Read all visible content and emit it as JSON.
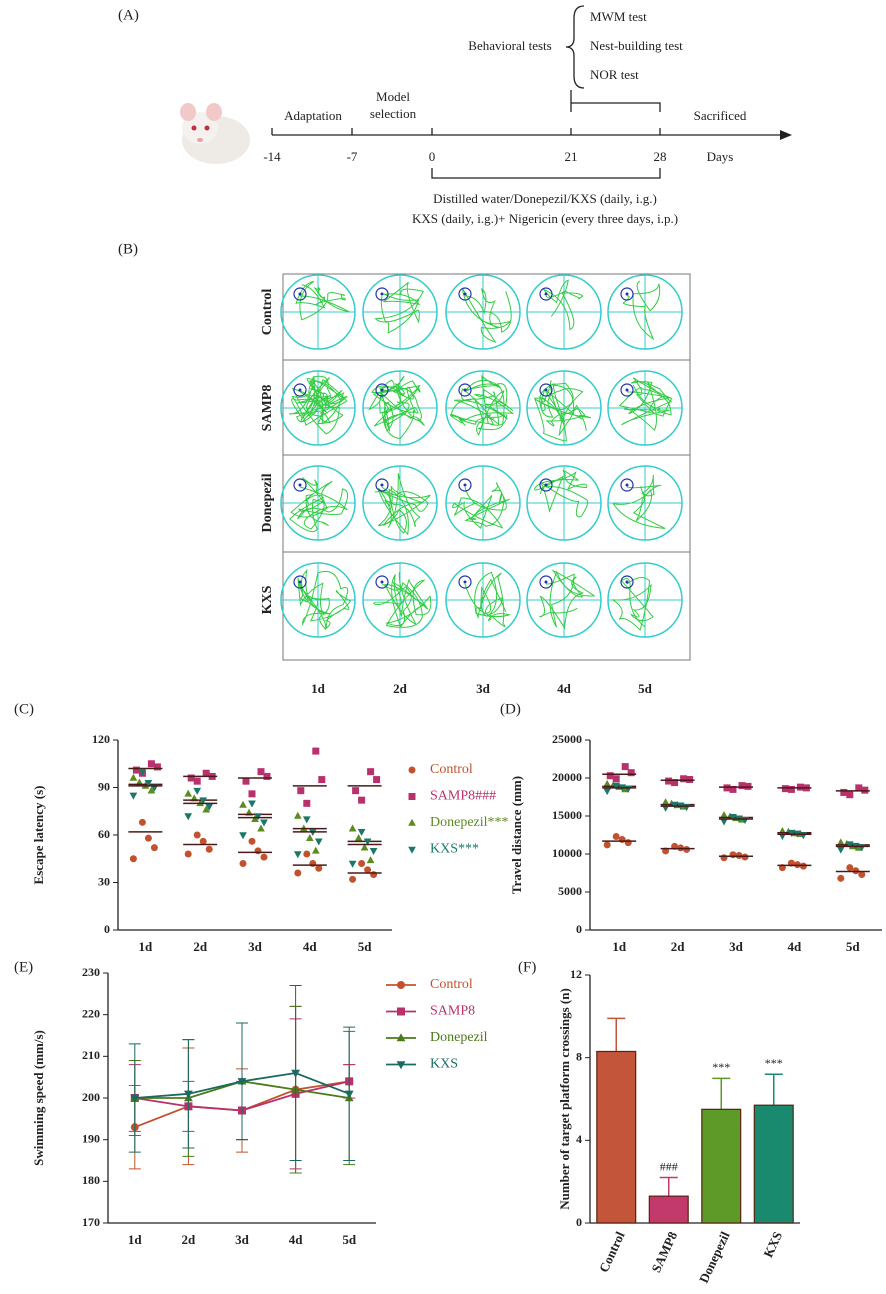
{
  "panel_a": {
    "label": "(A)",
    "tests": [
      "MWM test",
      "Nest-building test",
      "NOR test"
    ],
    "behavioral": "Behavioral tests",
    "adaptation": "Adaptation",
    "model_selection": [
      "Model",
      "selection"
    ],
    "sacrificed": "Sacrificed",
    "timeline_ticks": [
      "-14",
      "-7",
      "0",
      "21",
      "28"
    ],
    "days": "Days",
    "treatments": [
      "Distilled water/Donepezil/KXS (daily, i.g.)",
      "KXS (daily, i.g.)+ Nigericin (every three days, i.p.)"
    ]
  },
  "panel_b": {
    "label": "(B)",
    "rows": [
      "Control",
      "SAMP8",
      "Donepezil",
      "KXS"
    ],
    "columns": [
      "1d",
      "2d",
      "3d",
      "4d",
      "5d"
    ]
  },
  "chart_data": [
    {
      "type": "dot",
      "panel": "(C)",
      "y_label": "Escape latency (s)",
      "categories": [
        "1d",
        "2d",
        "3d",
        "4d",
        "5d"
      ],
      "ylim": [
        0,
        120
      ],
      "yticks": [
        0,
        30,
        60,
        90,
        120
      ],
      "series": [
        {
          "name": "Control",
          "color": "#c2522e",
          "marker": "circle",
          "values": [
            62,
            54,
            49,
            41,
            36
          ],
          "points": [
            [
              45,
              52,
              58,
              68
            ],
            [
              48,
              51,
              56,
              60
            ],
            [
              42,
              46,
              50,
              56
            ],
            [
              36,
              39,
              42,
              48
            ],
            [
              32,
              35,
              38,
              42
            ]
          ]
        },
        {
          "name": "SAMP8###",
          "color": "#b8306c",
          "marker": "square",
          "values": [
            102,
            97,
            96,
            91,
            91
          ],
          "points": [
            [
              99,
              101,
              103,
              105
            ],
            [
              94,
              96,
              97,
              99
            ],
            [
              86,
              94,
              97,
              100
            ],
            [
              80,
              88,
              95,
              113
            ],
            [
              82,
              88,
              95,
              100
            ]
          ]
        },
        {
          "name": "Donepezil***",
          "color": "#5b8c1f",
          "marker": "triangle-up",
          "values": [
            92,
            82,
            73,
            64,
            56
          ],
          "points": [
            [
              88,
              91,
              93,
              96
            ],
            [
              76,
              80,
              83,
              86
            ],
            [
              64,
              70,
              74,
              79
            ],
            [
              50,
              58,
              64,
              72
            ],
            [
              44,
              52,
              58,
              64
            ]
          ]
        },
        {
          "name": "KXS***",
          "color": "#1b7868",
          "marker": "triangle-down",
          "values": [
            91,
            80,
            71,
            62,
            54
          ],
          "points": [
            [
              85,
              90,
              93,
              100
            ],
            [
              72,
              78,
              82,
              88
            ],
            [
              60,
              68,
              72,
              80
            ],
            [
              48,
              56,
              62,
              70
            ],
            [
              42,
              50,
              56,
              62
            ]
          ]
        }
      ]
    },
    {
      "type": "dot",
      "panel": "(D)",
      "y_label": "Travel distance (mm)",
      "categories": [
        "1d",
        "2d",
        "3d",
        "4d",
        "5d"
      ],
      "ylim": [
        0,
        25000
      ],
      "yticks": [
        0,
        5000,
        10000,
        15000,
        20000,
        25000
      ],
      "series": [
        {
          "name": "Control",
          "color": "#c2522e",
          "marker": "circle",
          "values": [
            11700,
            10700,
            9700,
            8500,
            7700
          ],
          "points": [
            [
              11200,
              11500,
              11900,
              12300
            ],
            [
              10400,
              10600,
              10800,
              11000
            ],
            [
              9500,
              9600,
              9800,
              9900
            ],
            [
              8200,
              8400,
              8600,
              8800
            ],
            [
              6800,
              7300,
              7800,
              8200
            ]
          ]
        },
        {
          "name": "SAMP8",
          "color": "#b8306c",
          "marker": "square",
          "values": [
            20500,
            19700,
            18800,
            18700,
            18300
          ],
          "points": [
            [
              19900,
              20300,
              20700,
              21500
            ],
            [
              19400,
              19600,
              19800,
              19900
            ],
            [
              18500,
              18700,
              18900,
              19000
            ],
            [
              18500,
              18600,
              18700,
              18800
            ],
            [
              17800,
              18100,
              18400,
              18700
            ]
          ]
        },
        {
          "name": "Donepezil",
          "color": "#5b8c1f",
          "marker": "triangle-up",
          "values": [
            18900,
            16500,
            14800,
            12800,
            11200
          ],
          "points": [
            [
              18500,
              18800,
              19000,
              19200
            ],
            [
              16200,
              16400,
              16600,
              16800
            ],
            [
              14500,
              14700,
              14900,
              15100
            ],
            [
              12600,
              12700,
              12900,
              13000
            ],
            [
              10800,
              11000,
              11300,
              11500
            ]
          ]
        },
        {
          "name": "KXS",
          "color": "#1b7868",
          "marker": "triangle-down",
          "values": [
            18700,
            16300,
            14600,
            12600,
            11000
          ],
          "points": [
            [
              18300,
              18600,
              18800,
              19000
            ],
            [
              16100,
              16200,
              16400,
              16500
            ],
            [
              14300,
              14500,
              14700,
              14900
            ],
            [
              12400,
              12500,
              12700,
              12800
            ],
            [
              10600,
              10900,
              11100,
              11300
            ]
          ]
        }
      ]
    },
    {
      "type": "line",
      "panel": "(E)",
      "y_label": "Swimming speed (mm/s)",
      "categories": [
        "1d",
        "2d",
        "3d",
        "4d",
        "5d"
      ],
      "ylim": [
        170,
        230
      ],
      "yticks": [
        170,
        180,
        190,
        200,
        210,
        220,
        230
      ],
      "series": [
        {
          "name": "Control",
          "color": "#c2522e",
          "marker": "circle",
          "values": [
            193,
            198,
            197,
            202,
            204
          ],
          "errors": [
            10,
            14,
            10,
            20,
            4
          ]
        },
        {
          "name": "SAMP8",
          "color": "#b8306c",
          "marker": "square",
          "values": [
            200,
            198,
            197,
            201,
            204
          ],
          "errors": [
            8,
            6,
            7,
            18,
            4
          ]
        },
        {
          "name": "Donepezil",
          "color": "#4a7a1a",
          "marker": "triangle-up",
          "values": [
            200,
            200,
            204,
            202,
            200
          ],
          "errors": [
            9,
            14,
            14,
            20,
            16
          ]
        },
        {
          "name": "KXS",
          "color": "#1b6a60",
          "marker": "triangle-down",
          "values": [
            200,
            201,
            204,
            206,
            201
          ],
          "errors": [
            13,
            13,
            14,
            21,
            16
          ]
        }
      ]
    },
    {
      "type": "bar",
      "panel": "(F)",
      "y_label": "Number of target platform crossings (n)",
      "categories": [
        "Control",
        "SAMP8",
        "Donepezil",
        "KXS"
      ],
      "values": [
        8.3,
        1.3,
        5.5,
        5.7
      ],
      "errors": [
        1.6,
        0.9,
        1.5,
        1.5
      ],
      "colors": [
        "#c2553a",
        "#c23a6c",
        "#5e9a28",
        "#1a8a6e"
      ],
      "value_annotations": [
        null,
        "###",
        "***",
        "***"
      ],
      "ylim": [
        0,
        12
      ],
      "yticks": [
        0,
        4,
        8,
        12
      ]
    }
  ]
}
